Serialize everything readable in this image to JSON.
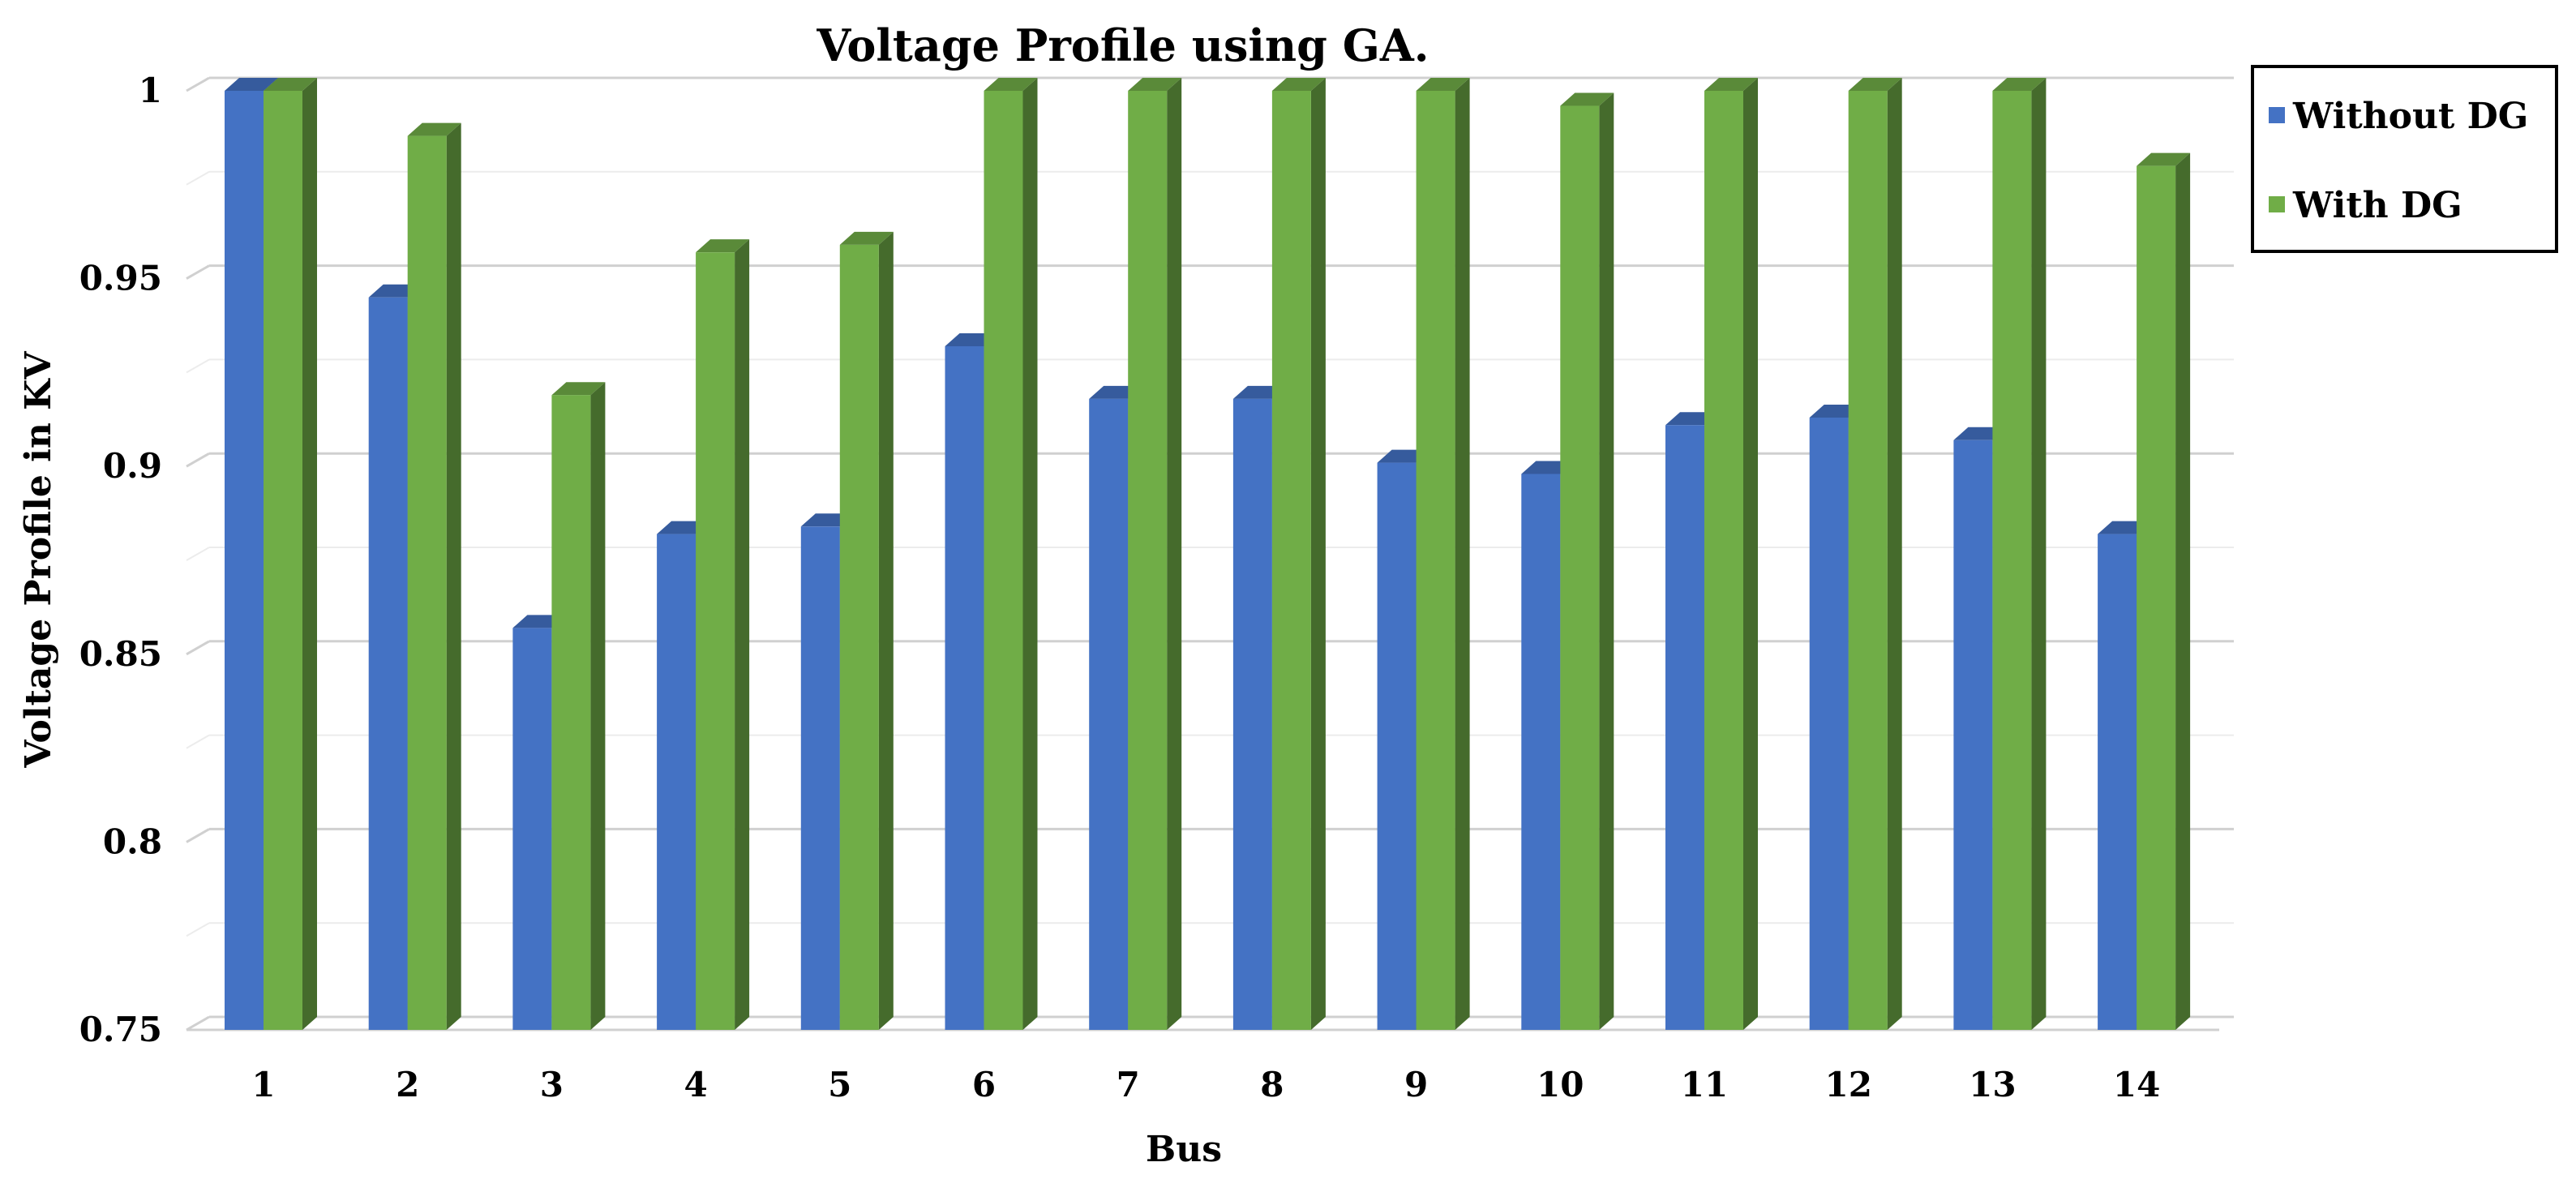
{
  "chart_data": {
    "type": "bar",
    "title": "Voltage Profile using GA.",
    "xlabel": "Bus",
    "ylabel": "Voltage Profile in KV",
    "categories": [
      "1",
      "2",
      "3",
      "4",
      "5",
      "6",
      "7",
      "8",
      "9",
      "10",
      "11",
      "12",
      "13",
      "14"
    ],
    "ylim": [
      0.75,
      1
    ],
    "yticks": [
      "0.75",
      "0.8",
      "0.85",
      "0.9",
      "0.95",
      "1"
    ],
    "grid": true,
    "legend_position": "top-right",
    "series": [
      {
        "name": "Without DG",
        "color": "#4472c4",
        "values": [
          1.0,
          0.945,
          0.857,
          0.882,
          0.884,
          0.932,
          0.918,
          0.918,
          0.901,
          0.898,
          0.911,
          0.913,
          0.907,
          0.882
        ]
      },
      {
        "name": "With DG",
        "color": "#70ad47",
        "values": [
          1.0,
          0.988,
          0.919,
          0.957,
          0.959,
          1.0,
          1.0,
          1.0,
          1.0,
          0.996,
          1.0,
          1.0,
          1.0,
          0.98
        ]
      }
    ]
  }
}
